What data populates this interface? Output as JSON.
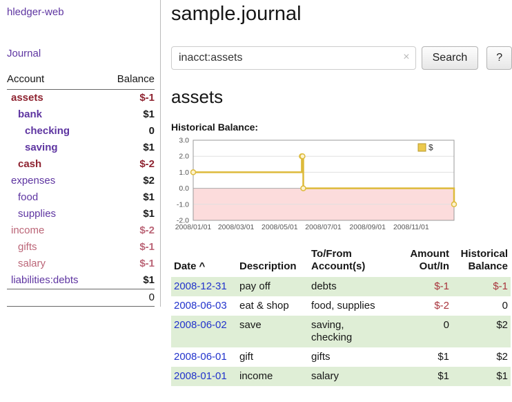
{
  "colors": {
    "purple": "#5e35a1",
    "dark_red": "#8e2330",
    "rose": "#bb6577",
    "black": "#1a1a1a",
    "link_blue": "#2233cc",
    "neg_red": "#a8343c",
    "row_green": "#dfeed6"
  },
  "app": {
    "brand": "hledger-web"
  },
  "sidebar": {
    "journal_link": "Journal",
    "accounts": {
      "header_account": "Account",
      "header_balance": "Balance",
      "rows": [
        {
          "name": "assets",
          "balance": "$-1",
          "indent": 0,
          "bold": true,
          "name_tone": "dark_red",
          "balance_tone": "dark_red"
        },
        {
          "name": "bank",
          "balance": "$1",
          "indent": 1,
          "bold": true,
          "name_tone": "purple",
          "balance_tone": "black"
        },
        {
          "name": "checking",
          "balance": "0",
          "indent": 2,
          "bold": true,
          "name_tone": "purple",
          "balance_tone": "black"
        },
        {
          "name": "saving",
          "balance": "$1",
          "indent": 2,
          "bold": true,
          "name_tone": "purple",
          "balance_tone": "black"
        },
        {
          "name": "cash",
          "balance": "$-2",
          "indent": 1,
          "bold": true,
          "name_tone": "dark_red",
          "balance_tone": "dark_red"
        },
        {
          "name": "expenses",
          "balance": "$2",
          "indent": 0,
          "bold": false,
          "name_tone": "purple",
          "balance_tone": "black"
        },
        {
          "name": "food",
          "balance": "$1",
          "indent": 1,
          "bold": false,
          "name_tone": "purple",
          "balance_tone": "black"
        },
        {
          "name": "supplies",
          "balance": "$1",
          "indent": 1,
          "bold": false,
          "name_tone": "purple",
          "balance_tone": "black"
        },
        {
          "name": "income",
          "balance": "$-2",
          "indent": 0,
          "bold": false,
          "name_tone": "rose",
          "balance_tone": "rose"
        },
        {
          "name": "gifts",
          "balance": "$-1",
          "indent": 1,
          "bold": false,
          "name_tone": "rose",
          "balance_tone": "rose"
        },
        {
          "name": "salary",
          "balance": "$-1",
          "indent": 1,
          "bold": false,
          "name_tone": "rose",
          "balance_tone": "rose"
        },
        {
          "name": "liabilities:debts",
          "balance": "$1",
          "indent": 0,
          "bold": false,
          "name_tone": "purple",
          "balance_tone": "black"
        }
      ],
      "total": "0"
    }
  },
  "main": {
    "title": "sample.journal",
    "search": {
      "value": "inacct:assets",
      "clear_icon": "×",
      "search_button": "Search",
      "help_button": "?"
    },
    "account_heading": "assets",
    "chart_heading": "Historical Balance:"
  },
  "chart_data": {
    "type": "line",
    "style": "step-after",
    "title": "Historical Balance",
    "legend": [
      "$"
    ],
    "legend_position": "top-right",
    "grid": true,
    "ylim": [
      -2,
      3
    ],
    "y_ticks": [
      "3.0",
      "2.0",
      "1.0",
      "0.0",
      "-1.0",
      "-2.0"
    ],
    "x_range": [
      "2008-01-01",
      "2008-12-31"
    ],
    "x_ticks": [
      {
        "date": "2008-01-01",
        "label": "2008/01/01"
      },
      {
        "date": "2008-03-01",
        "label": "2008/03/01"
      },
      {
        "date": "2008-05-01",
        "label": "2008/05/01"
      },
      {
        "date": "2008-07-01",
        "label": "2008/07/01"
      },
      {
        "date": "2008-09-01",
        "label": "2008/09/01"
      },
      {
        "date": "2008-11-01",
        "label": "2008/11/01"
      }
    ],
    "points": [
      {
        "date": "2008-01-01",
        "value": 1
      },
      {
        "date": "2008-06-01",
        "value": 2
      },
      {
        "date": "2008-06-02",
        "value": 2
      },
      {
        "date": "2008-06-03",
        "value": 0
      },
      {
        "date": "2008-12-31",
        "value": -1
      }
    ],
    "line_color": "#ddba3a",
    "marker_fill": "#fdf3cf",
    "legend_fill": "#ecc94d",
    "legend_border": "#b89a2e",
    "negative_region_color": "#fcdcdc",
    "grid_color": "#e0e0e0",
    "zero_line_color": "#aaaaaa",
    "axis_color": "#999999",
    "tick_label_color": "#555555"
  },
  "register": {
    "headers": [
      "Date",
      "Description",
      "To/From Account(s)",
      "Amount Out/In",
      "Historical Balance"
    ],
    "sort_indicator": "^",
    "rows": [
      {
        "date": "2008-12-31",
        "description": "pay off",
        "accounts": "debts",
        "amount": "$-1",
        "balance": "$-1",
        "amount_negative": true,
        "balance_negative": true
      },
      {
        "date": "2008-06-03",
        "description": "eat & shop",
        "accounts": "food, supplies",
        "amount": "$-2",
        "balance": "0",
        "amount_negative": true,
        "balance_negative": false
      },
      {
        "date": "2008-06-02",
        "description": "save",
        "accounts": "saving, checking",
        "amount": "0",
        "balance": "$2",
        "amount_negative": false,
        "balance_negative": false
      },
      {
        "date": "2008-06-01",
        "description": "gift",
        "accounts": "gifts",
        "amount": "$1",
        "balance": "$2",
        "amount_negative": false,
        "balance_negative": false
      },
      {
        "date": "2008-01-01",
        "description": "income",
        "accounts": "salary",
        "amount": "$1",
        "balance": "$1",
        "amount_negative": false,
        "balance_negative": false
      }
    ]
  }
}
